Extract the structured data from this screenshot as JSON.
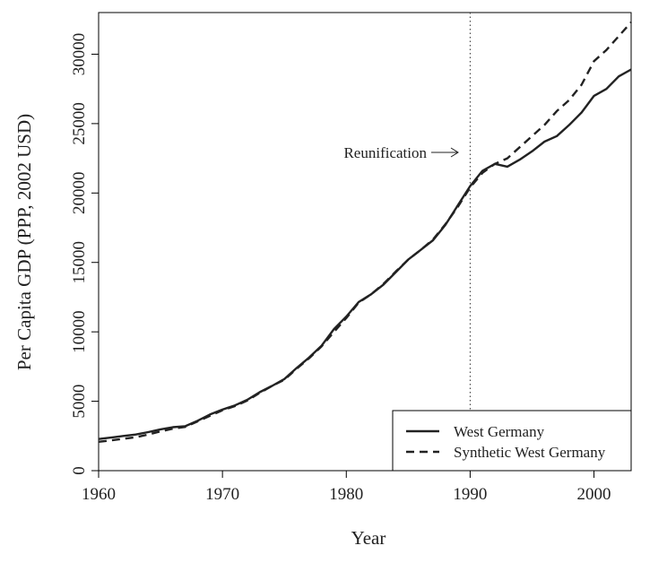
{
  "chart_data": {
    "type": "line",
    "xlabel": "Year",
    "ylabel": "Per Capita GDP (PPP, 2002 USD)",
    "xlim": [
      1960,
      2003
    ],
    "ylim": [
      0,
      33000
    ],
    "x_ticks": [
      1960,
      1970,
      1980,
      1990,
      2000
    ],
    "y_ticks": [
      0,
      5000,
      10000,
      15000,
      20000,
      25000,
      30000
    ],
    "legend_position": "bottom-right",
    "annotation": {
      "text": "Reunification",
      "x": 1990,
      "style": "vertical-dotted-line-with-arrow"
    },
    "x": [
      1960,
      1961,
      1962,
      1963,
      1964,
      1965,
      1966,
      1967,
      1968,
      1969,
      1970,
      1971,
      1972,
      1973,
      1974,
      1975,
      1976,
      1977,
      1978,
      1979,
      1980,
      1981,
      1982,
      1983,
      1984,
      1985,
      1986,
      1987,
      1988,
      1989,
      1990,
      1991,
      1992,
      1993,
      1994,
      1995,
      1996,
      1997,
      1998,
      1999,
      2000,
      2001,
      2002,
      2003
    ],
    "series": [
      {
        "name": "West Germany",
        "style": "solid",
        "values": [
          2280,
          2380,
          2500,
          2600,
          2780,
          2980,
          3130,
          3200,
          3600,
          4050,
          4400,
          4700,
          5100,
          5650,
          6100,
          6600,
          7400,
          8150,
          9000,
          10200,
          11100,
          12150,
          12700,
          13400,
          14300,
          15200,
          15900,
          16600,
          17700,
          19100,
          20500,
          21600,
          22100,
          21900,
          22400,
          23000,
          23700,
          24100,
          24900,
          25800,
          27000,
          27500,
          28400,
          28900
        ]
      },
      {
        "name": "Synthetic West Germany",
        "style": "dashed",
        "values": [
          2080,
          2180,
          2300,
          2400,
          2600,
          2830,
          3030,
          3150,
          3550,
          3950,
          4350,
          4650,
          5050,
          5600,
          6100,
          6550,
          7350,
          8100,
          8950,
          10000,
          11000,
          12100,
          12700,
          13450,
          14350,
          15200,
          15900,
          16650,
          17750,
          19000,
          20400,
          21450,
          22100,
          22500,
          23300,
          24100,
          24900,
          25900,
          26700,
          27800,
          29500,
          30300,
          31300,
          32300
        ]
      }
    ]
  }
}
